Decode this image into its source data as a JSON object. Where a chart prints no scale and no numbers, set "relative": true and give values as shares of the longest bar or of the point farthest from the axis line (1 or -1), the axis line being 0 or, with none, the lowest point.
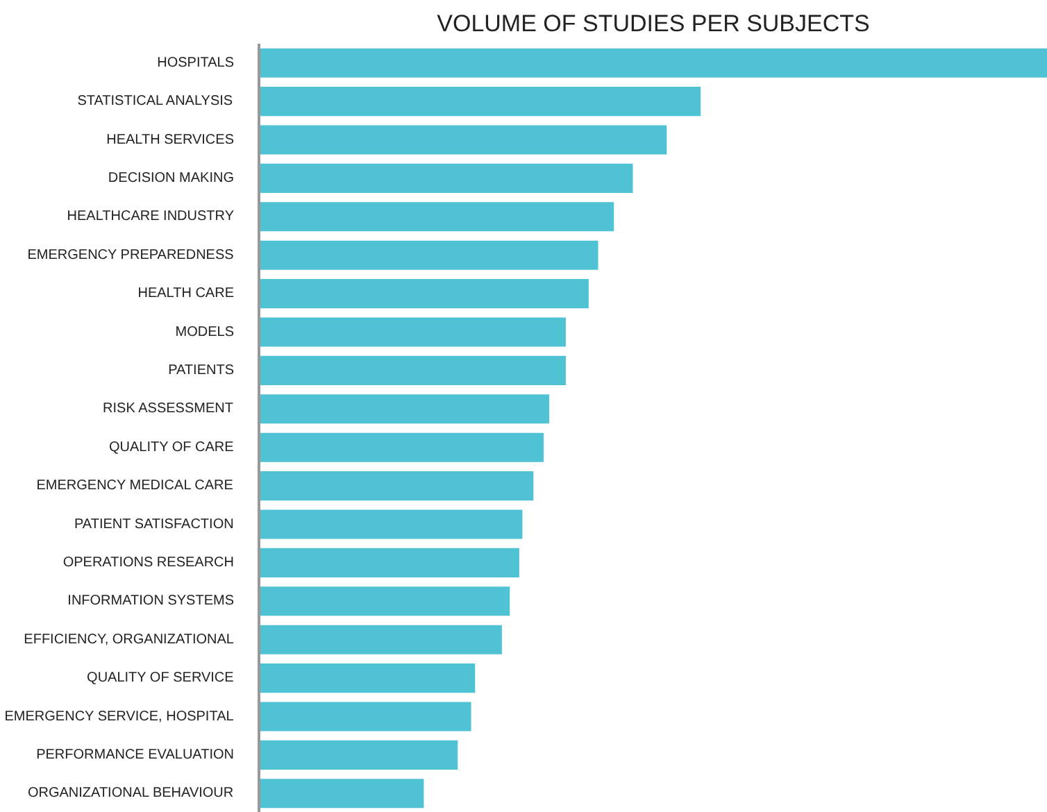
{
  "chart_data": {
    "type": "bar",
    "orientation": "horizontal",
    "relative": true,
    "title": "VOLUME OF STUDIES PER SUBJECTS",
    "categories": [
      "HOSPITALS",
      "STATISTICAL ANALYSIS",
      "HEALTH SERVICES",
      "DECISION MAKING",
      "HEALTHCARE INDUSTRY",
      "EMERGENCY PREPAREDNESS",
      "HEALTH CARE",
      "MODELS",
      "PATIENTS",
      "RISK ASSESSMENT",
      "QUALITY OF CARE",
      "EMERGENCY MEDICAL CARE",
      "PATIENT SATISFACTION",
      "OPERATIONS RESEARCH",
      "INFORMATION SYSTEMS",
      "EFFICIENCY, ORGANIZATIONAL",
      "QUALITY OF SERVICE",
      "EMERGENCY SERVICE, HOSPITAL",
      "PERFORMANCE EVALUATION",
      "ORGANIZATIONAL BEHAVIOUR"
    ],
    "values": [
      1.0,
      0.56,
      0.517,
      0.474,
      0.45,
      0.43,
      0.418,
      0.389,
      0.389,
      0.368,
      0.361,
      0.348,
      0.334,
      0.33,
      0.318,
      0.308,
      0.274,
      0.269,
      0.252,
      0.209
    ],
    "color": "#4fc3d3"
  }
}
